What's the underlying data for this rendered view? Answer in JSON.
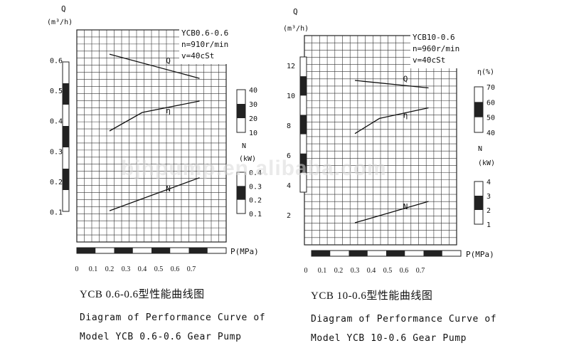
{
  "watermark": "bjhpump.en.alibaba.com",
  "chart_data": [
    {
      "type": "line",
      "model": "YCB0.6-0.6",
      "conditions": [
        "n=910r/min",
        "v=40cSt"
      ],
      "title_cn": "YCB 0.6-0.6型性能曲线图",
      "caption_line1": "Diagram of Performance Curve of",
      "caption_line2": "Model YCB  0.6-0.6 Gear Pump",
      "xlabel": "P(MPa)",
      "x_ticks": [
        "0",
        "0.1",
        "0.2",
        "0.3",
        "0.4",
        "0.5",
        "0.6",
        "0.7"
      ],
      "xlim": [
        0,
        0.7
      ],
      "q_axis": {
        "label_top": "Q",
        "unit": "(m³/h)",
        "ticks": [
          "0.1",
          "0.2",
          "0.3",
          "0.4",
          "0.5",
          "0.6"
        ],
        "range": [
          0,
          0.7
        ]
      },
      "eff_axis": {
        "label": "",
        "ticks": [
          "10",
          "20",
          "30",
          "40"
        ],
        "range": [
          10,
          40
        ]
      },
      "power_axis": {
        "label": "N",
        "unit": "(kW)",
        "ticks": [
          "0.1",
          "0.2",
          "0.3",
          "0.4"
        ],
        "range": [
          0.1,
          0.4
        ]
      },
      "series": [
        {
          "name": "Q",
          "axis": "q",
          "x": [
            0.2,
            0.75
          ],
          "y": [
            0.62,
            0.54
          ]
        },
        {
          "name": "η",
          "axis": "eff",
          "x": [
            0.2,
            0.4,
            0.75
          ],
          "y": [
            12,
            25,
            33
          ]
        },
        {
          "name": "N",
          "axis": "power",
          "x": [
            0.2,
            0.75
          ],
          "y": [
            0.12,
            0.36
          ]
        }
      ]
    },
    {
      "type": "line",
      "model": "YCB10-0.6",
      "conditions": [
        "n=960r/min",
        "v=40cSt"
      ],
      "title_cn": "YCB 10-0.6型性能曲线图",
      "caption_line1": "Diagram of Performance Curve of",
      "caption_line2": "Model YCB  10-0.6 Gear Pump",
      "xlabel": "P(MPa)",
      "x_ticks": [
        "0",
        "0.1",
        "0.2",
        "0.3",
        "0.4",
        "0.5",
        "0.6",
        "0.7"
      ],
      "xlim": [
        0,
        0.7
      ],
      "q_axis": {
        "label_top": "Q",
        "unit": "(m³/h)",
        "ticks": [
          "2",
          "4",
          "6",
          "8",
          "10",
          "12"
        ],
        "range": [
          0,
          14
        ]
      },
      "eff_axis": {
        "label": "η(%)",
        "ticks": [
          "40",
          "50",
          "60",
          "70"
        ],
        "range": [
          40,
          70
        ]
      },
      "power_axis": {
        "label": "N",
        "unit": "(kW)",
        "ticks": [
          "1",
          "2",
          "3",
          "4"
        ],
        "range": [
          1,
          4
        ]
      },
      "series": [
        {
          "name": "Q",
          "axis": "q",
          "x": [
            0.3,
            0.75
          ],
          "y": [
            11.0,
            10.5
          ]
        },
        {
          "name": "η",
          "axis": "eff",
          "x": [
            0.3,
            0.45,
            0.75
          ],
          "y": [
            42,
            52,
            59
          ]
        },
        {
          "name": "N",
          "axis": "power",
          "x": [
            0.3,
            0.75
          ],
          "y": [
            1.1,
            2.6
          ]
        }
      ]
    }
  ]
}
